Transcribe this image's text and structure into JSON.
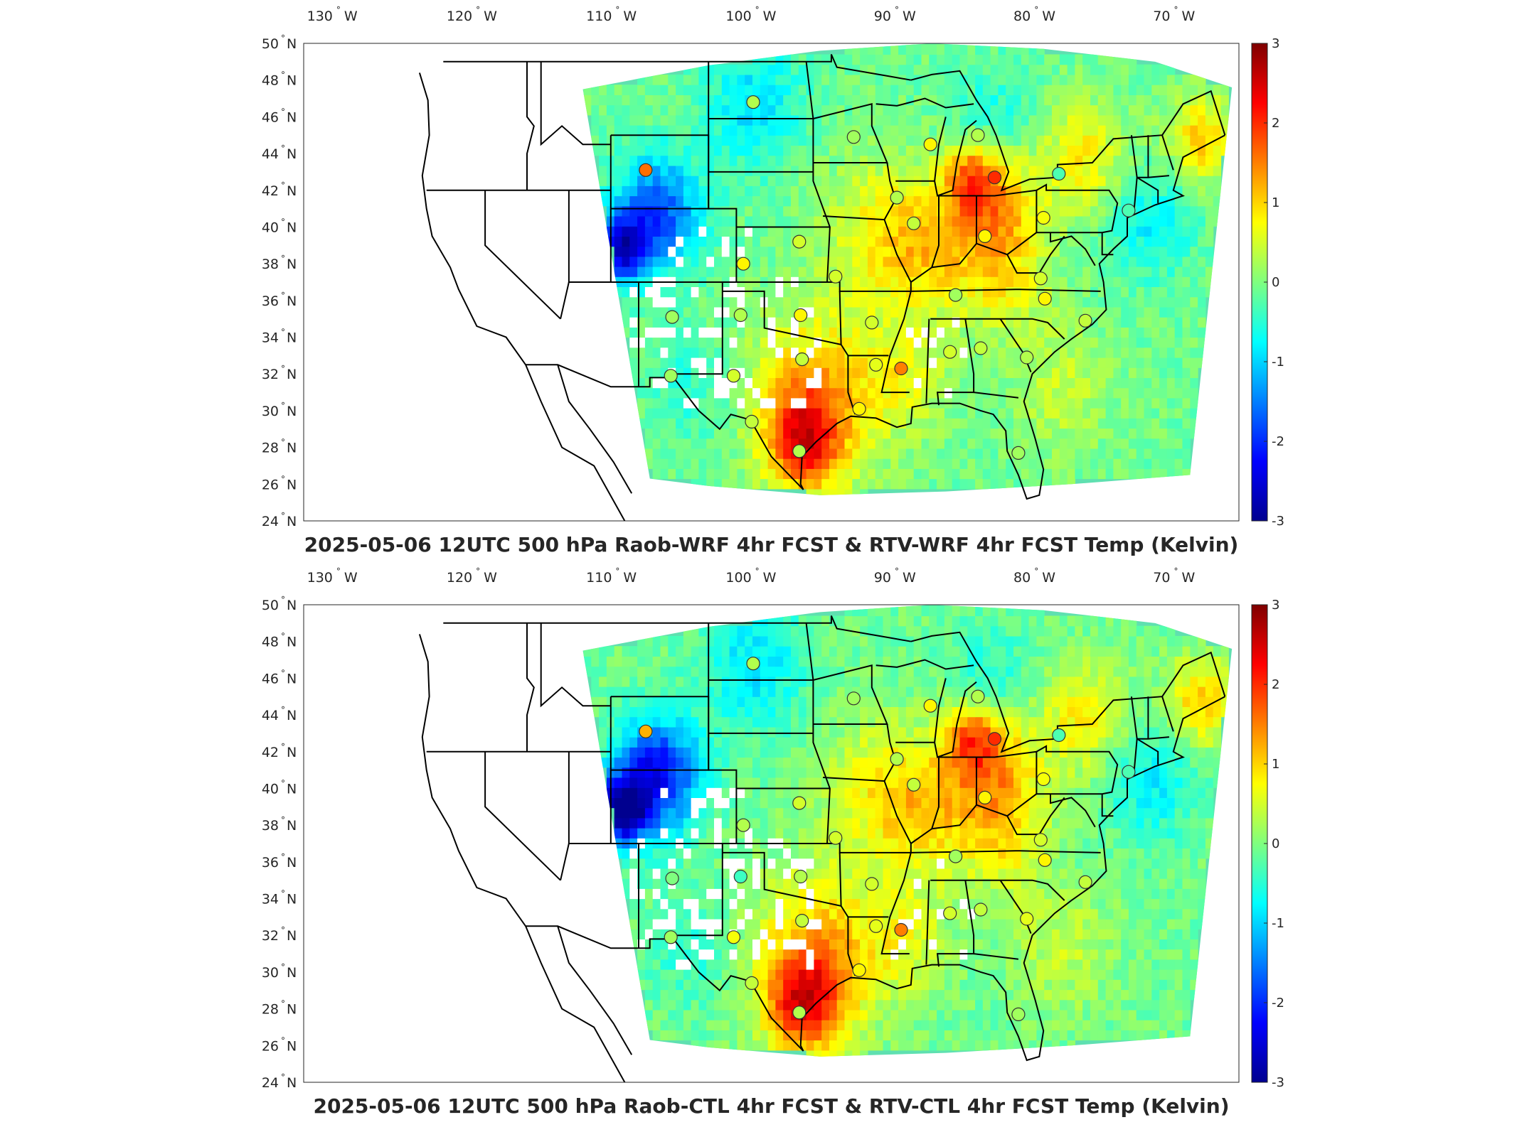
{
  "colors": {
    "colormap": [
      "#00008f",
      "#0000ff",
      "#007fff",
      "#00ffff",
      "#7fff7f",
      "#ffff00",
      "#ff7f00",
      "#ff0000",
      "#7f0000"
    ],
    "background_field": "#5fe0b0",
    "state_lines": "#000000",
    "station_edge": "#333333",
    "axis": "#262626"
  },
  "longitude_ticks": [
    {
      "value": "130",
      "suffix": "W"
    },
    {
      "value": "120",
      "suffix": "W"
    },
    {
      "value": "110",
      "suffix": "W"
    },
    {
      "value": "100",
      "suffix": "W"
    },
    {
      "value": "90",
      "suffix": "W"
    },
    {
      "value": "80",
      "suffix": "W"
    },
    {
      "value": "70",
      "suffix": "W"
    }
  ],
  "latitude_ticks": [
    {
      "value": "50",
      "suffix": "N"
    },
    {
      "value": "48",
      "suffix": "N"
    },
    {
      "value": "46",
      "suffix": "N"
    },
    {
      "value": "44",
      "suffix": "N"
    },
    {
      "value": "42",
      "suffix": "N"
    },
    {
      "value": "40",
      "suffix": "N"
    },
    {
      "value": "38",
      "suffix": "N"
    },
    {
      "value": "36",
      "suffix": "N"
    },
    {
      "value": "34",
      "suffix": "N"
    },
    {
      "value": "32",
      "suffix": "N"
    },
    {
      "value": "30",
      "suffix": "N"
    },
    {
      "value": "28",
      "suffix": "N"
    },
    {
      "value": "26",
      "suffix": "N"
    },
    {
      "value": "24",
      "suffix": "N"
    }
  ],
  "degree_symbol": "°",
  "colorbar": {
    "min": -3,
    "max": 3,
    "tick_labels": [
      "3",
      "2",
      "1",
      "0",
      "-1",
      "-2",
      "-3"
    ]
  },
  "panels": [
    {
      "title": "2025-05-06 12UTC 500 hPa Raob-WRF 4hr FCST & RTV-WRF 4hr FCST Temp (Kelvin)",
      "stations": [
        {
          "lon": -100.8,
          "lat": 46.8,
          "value": 0.3
        },
        {
          "lon": -108.5,
          "lat": 43.1,
          "value": 1.6
        },
        {
          "lon": -93.6,
          "lat": 44.9,
          "value": 0.2
        },
        {
          "lon": -88.1,
          "lat": 44.5,
          "value": 0.8
        },
        {
          "lon": -84.7,
          "lat": 45.0,
          "value": 0.3
        },
        {
          "lon": -83.5,
          "lat": 42.7,
          "value": 2.0
        },
        {
          "lon": -78.9,
          "lat": 42.9,
          "value": -0.3
        },
        {
          "lon": -90.5,
          "lat": 41.6,
          "value": 0.3
        },
        {
          "lon": -89.3,
          "lat": 40.2,
          "value": 0.4
        },
        {
          "lon": -84.2,
          "lat": 39.5,
          "value": 0.8
        },
        {
          "lon": -80.0,
          "lat": 40.5,
          "value": 0.7
        },
        {
          "lon": -73.9,
          "lat": 40.9,
          "value": -0.3
        },
        {
          "lon": -97.5,
          "lat": 39.2,
          "value": 0.5
        },
        {
          "lon": -101.5,
          "lat": 38.0,
          "value": 0.8
        },
        {
          "lon": -94.9,
          "lat": 37.3,
          "value": 0.5
        },
        {
          "lon": -86.3,
          "lat": 36.3,
          "value": 0.2
        },
        {
          "lon": -80.2,
          "lat": 37.2,
          "value": 0.5
        },
        {
          "lon": -79.9,
          "lat": 36.1,
          "value": 0.8
        },
        {
          "lon": -77.0,
          "lat": 34.9,
          "value": 0.4
        },
        {
          "lon": -106.6,
          "lat": 35.1,
          "value": 0.2
        },
        {
          "lon": -101.7,
          "lat": 35.2,
          "value": 0.3
        },
        {
          "lon": -97.4,
          "lat": 35.2,
          "value": 0.8
        },
        {
          "lon": -92.3,
          "lat": 34.8,
          "value": 0.5
        },
        {
          "lon": -97.3,
          "lat": 32.8,
          "value": 0.4
        },
        {
          "lon": -92.0,
          "lat": 32.5,
          "value": 0.6
        },
        {
          "lon": -90.2,
          "lat": 32.3,
          "value": 1.5
        },
        {
          "lon": -86.7,
          "lat": 33.2,
          "value": 0.5
        },
        {
          "lon": -84.5,
          "lat": 33.4,
          "value": 0.4
        },
        {
          "lon": -81.2,
          "lat": 32.9,
          "value": 0.3
        },
        {
          "lon": -106.7,
          "lat": 31.9,
          "value": 0.2
        },
        {
          "lon": -102.2,
          "lat": 31.9,
          "value": 0.5
        },
        {
          "lon": -93.2,
          "lat": 30.1,
          "value": 0.8
        },
        {
          "lon": -100.9,
          "lat": 29.4,
          "value": 0.4
        },
        {
          "lon": -97.5,
          "lat": 27.8,
          "value": 0.3
        },
        {
          "lon": -81.8,
          "lat": 27.7,
          "value": 0.2
        }
      ]
    },
    {
      "title": "2025-05-06 12UTC 500 hPa Raob-CTL 4hr FCST & RTV-CTL 4hr FCST Temp (Kelvin)",
      "stations": [
        {
          "lon": -100.8,
          "lat": 46.8,
          "value": 0.3
        },
        {
          "lon": -108.5,
          "lat": 43.1,
          "value": 1.2
        },
        {
          "lon": -93.6,
          "lat": 44.9,
          "value": 0.2
        },
        {
          "lon": -88.1,
          "lat": 44.5,
          "value": 0.8
        },
        {
          "lon": -84.7,
          "lat": 45.0,
          "value": 0.3
        },
        {
          "lon": -83.5,
          "lat": 42.7,
          "value": 2.0
        },
        {
          "lon": -78.9,
          "lat": 42.9,
          "value": -0.3
        },
        {
          "lon": -90.5,
          "lat": 41.6,
          "value": 0.3
        },
        {
          "lon": -89.3,
          "lat": 40.2,
          "value": 0.4
        },
        {
          "lon": -84.2,
          "lat": 39.5,
          "value": 0.8
        },
        {
          "lon": -80.0,
          "lat": 40.5,
          "value": 0.7
        },
        {
          "lon": -73.9,
          "lat": 40.9,
          "value": -0.3
        },
        {
          "lon": -97.5,
          "lat": 39.2,
          "value": 0.5
        },
        {
          "lon": -101.5,
          "lat": 38.0,
          "value": 0.3
        },
        {
          "lon": -94.9,
          "lat": 37.3,
          "value": 0.5
        },
        {
          "lon": -86.3,
          "lat": 36.3,
          "value": 0.2
        },
        {
          "lon": -80.2,
          "lat": 37.2,
          "value": 0.5
        },
        {
          "lon": -79.9,
          "lat": 36.1,
          "value": 0.8
        },
        {
          "lon": -77.0,
          "lat": 34.9,
          "value": 0.4
        },
        {
          "lon": -106.6,
          "lat": 35.1,
          "value": 0.0
        },
        {
          "lon": -101.7,
          "lat": 35.2,
          "value": -0.4
        },
        {
          "lon": -97.4,
          "lat": 35.2,
          "value": 0.3
        },
        {
          "lon": -92.3,
          "lat": 34.8,
          "value": 0.5
        },
        {
          "lon": -97.3,
          "lat": 32.8,
          "value": 0.4
        },
        {
          "lon": -92.0,
          "lat": 32.5,
          "value": 0.6
        },
        {
          "lon": -90.2,
          "lat": 32.3,
          "value": 1.5
        },
        {
          "lon": -86.7,
          "lat": 33.2,
          "value": 0.5
        },
        {
          "lon": -84.5,
          "lat": 33.4,
          "value": 0.4
        },
        {
          "lon": -81.2,
          "lat": 32.9,
          "value": 0.6
        },
        {
          "lon": -106.7,
          "lat": 31.9,
          "value": 0.2
        },
        {
          "lon": -102.2,
          "lat": 31.9,
          "value": 0.7
        },
        {
          "lon": -93.2,
          "lat": 30.1,
          "value": 0.8
        },
        {
          "lon": -100.9,
          "lat": 29.4,
          "value": 0.4
        },
        {
          "lon": -97.5,
          "lat": 27.8,
          "value": 0.3
        },
        {
          "lon": -81.8,
          "lat": 27.7,
          "value": 0.2
        }
      ]
    }
  ]
}
